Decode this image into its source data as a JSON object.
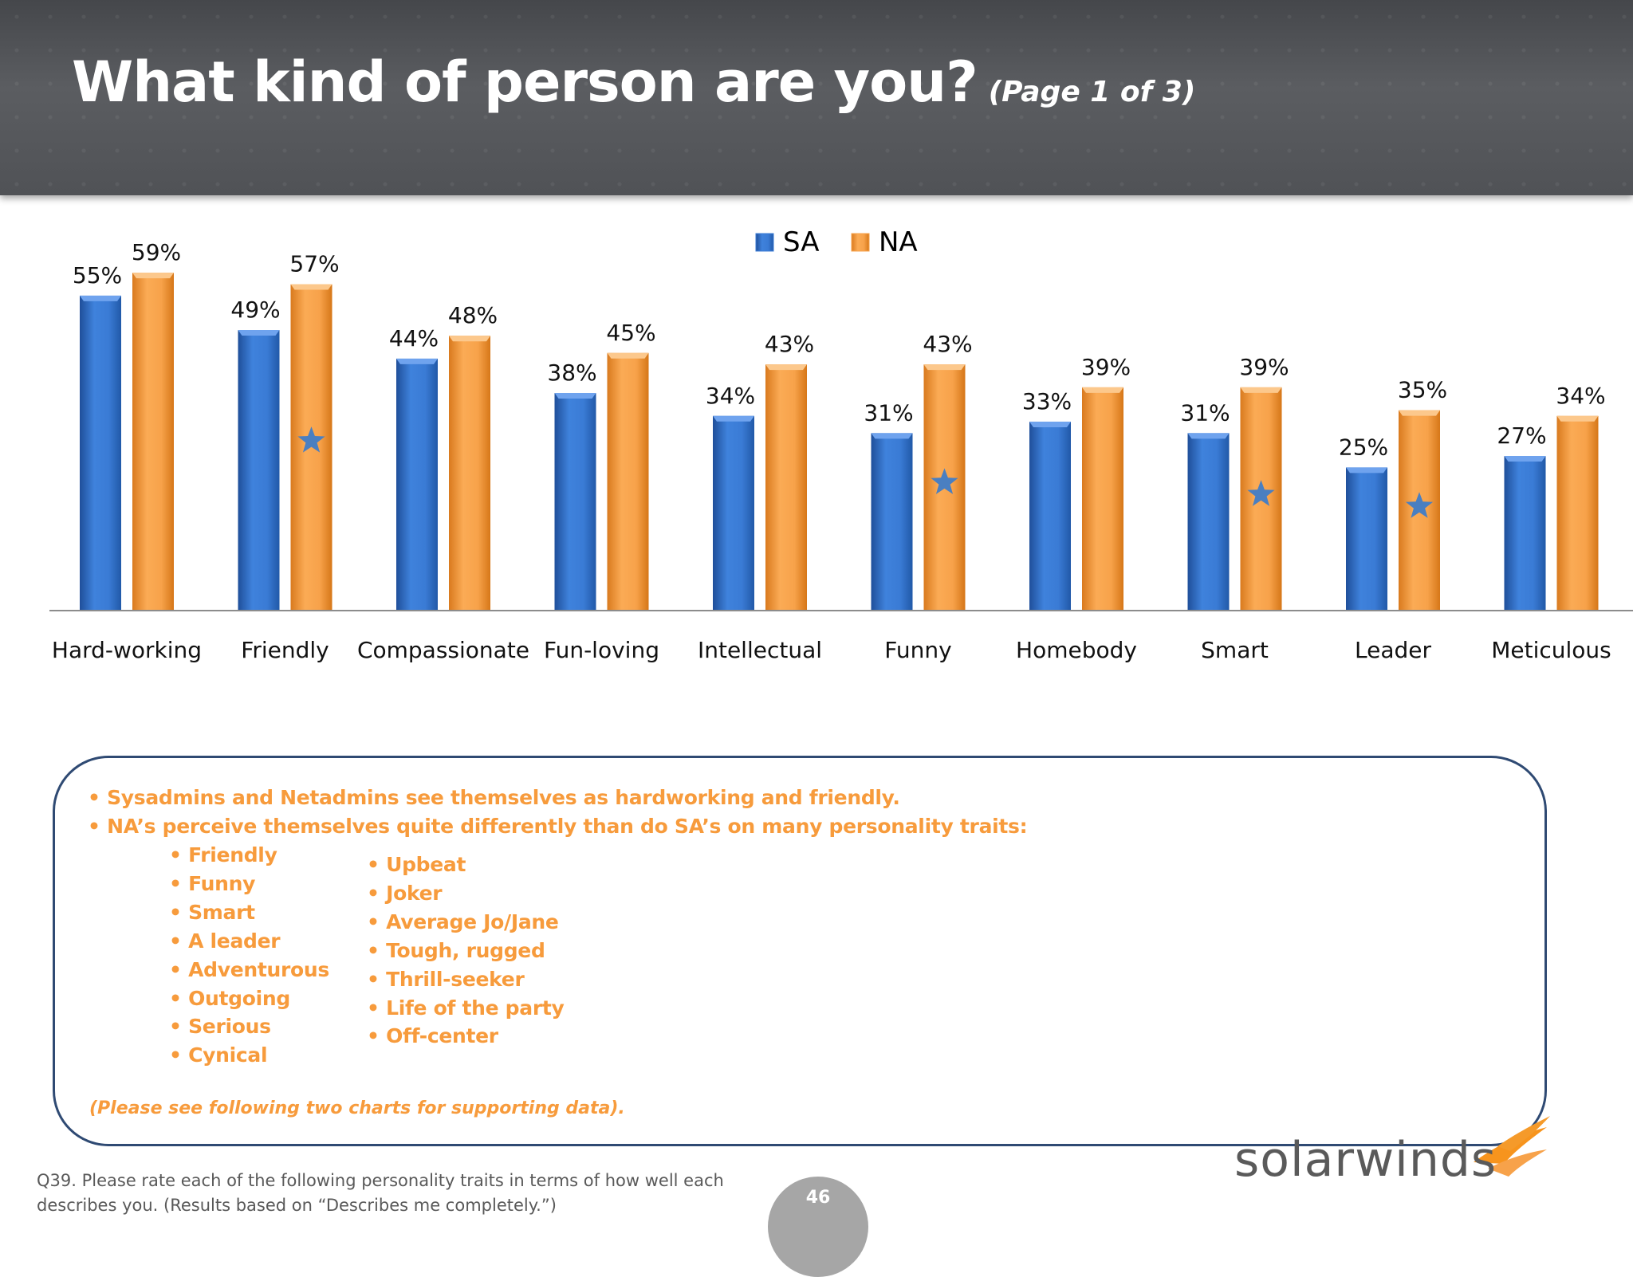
{
  "header": {
    "title": "What kind of person are you?",
    "subtitle": "(Page 1 of 3)"
  },
  "chart_data": {
    "type": "bar",
    "categories": [
      "Hard-working",
      "Friendly",
      "Compassionate",
      "Fun-loving",
      "Intellectual",
      "Funny",
      "Homebody",
      "Smart",
      "Leader",
      "Meticulous"
    ],
    "series": [
      {
        "name": "SA",
        "values": [
          55,
          49,
          44,
          38,
          34,
          31,
          33,
          31,
          25,
          27
        ],
        "labels": [
          "55%",
          "49%",
          "44%",
          "38%",
          "34%",
          "31%",
          "33%",
          "31%",
          "25%",
          "27%"
        ],
        "color": "#3a7bd5"
      },
      {
        "name": "NA",
        "values": [
          59,
          57,
          48,
          45,
          43,
          43,
          39,
          39,
          35,
          34
        ],
        "labels": [
          "59%",
          "57%",
          "48%",
          "45%",
          "43%",
          "43%",
          "39%",
          "39%",
          "35%",
          "34%"
        ],
        "color": "#f7a24a"
      }
    ],
    "significant_difference_marked_categories": [
      "Friendly",
      "Funny",
      "Smart",
      "Leader"
    ],
    "ylim": [
      0,
      65
    ],
    "legend_position": "top-center",
    "grid": false
  },
  "notes": {
    "line1": "• Sysadmins and Netadmins see themselves as hardworking and friendly.",
    "line2": "•  NA’s perceive themselves quite differently than do SA’s on many personality traits:",
    "list_left": [
      "• Friendly",
      "• Funny",
      "• Smart",
      "• A leader",
      "• Adventurous",
      "• Outgoing",
      "• Serious",
      "• Cynical"
    ],
    "list_right": [
      "• Upbeat",
      "• Joker",
      "• Average Jo/Jane",
      "• Tough, rugged",
      "• Thrill-seeker",
      "• Life of the party",
      "• Off-center"
    ],
    "support": "(Please see following two charts for supporting data)."
  },
  "footer": {
    "question_line1": "Q39. Please rate each of the following personality traits in terms of how well each",
    "question_line2": "describes you. (Results based on “Describes me completely.”)",
    "page_number": "46",
    "logo_text": "solarwinds"
  },
  "colors": {
    "header_bg": "#505256",
    "accent_orange": "#f79b3c",
    "box_border": "#2f4a73",
    "sa_blue": "#3a7bd5",
    "na_orange": "#f7a24a",
    "star": "#4a7fc1"
  }
}
